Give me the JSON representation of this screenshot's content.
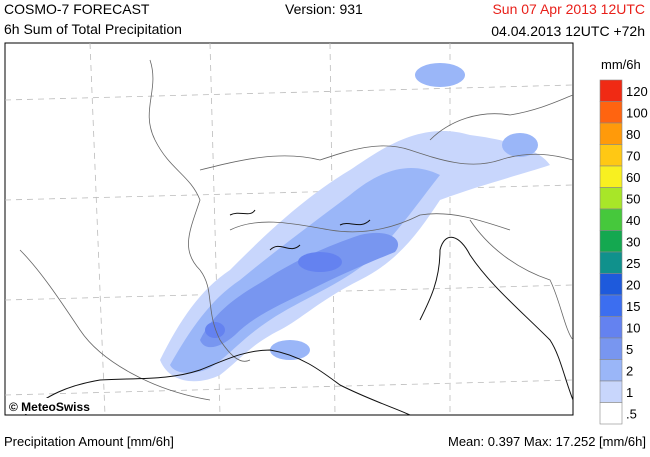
{
  "header": {
    "title": "COSMO-7 FORECAST",
    "subtitle": "6h Sum of Total Precipitation",
    "version": "Version: 931",
    "valid_time": "Sun 07 Apr 2013 12UTC",
    "run_time": "04.04.2013 12UTC +72h"
  },
  "map": {
    "credit": "© MeteoSwiss"
  },
  "legend": {
    "title": "mm/6h",
    "entries": [
      {
        "label": "120",
        "color": "#f02a14"
      },
      {
        "label": "100",
        "color": "#ff6410"
      },
      {
        "label": "80",
        "color": "#ff9a0a"
      },
      {
        "label": "70",
        "color": "#ffc814"
      },
      {
        "label": "60",
        "color": "#f8f020"
      },
      {
        "label": "50",
        "color": "#a8e628"
      },
      {
        "label": "40",
        "color": "#46c83c"
      },
      {
        "label": "30",
        "color": "#14a850"
      },
      {
        "label": "25",
        "color": "#10918c"
      },
      {
        "label": "20",
        "color": "#1e5adc"
      },
      {
        "label": "15",
        "color": "#3c6ef0"
      },
      {
        "label": "10",
        "color": "#6482f0"
      },
      {
        "label": "5",
        "color": "#7896f0"
      },
      {
        "label": "2",
        "color": "#9ab6f8"
      },
      {
        "label": "1",
        "color": "#c8d6fc"
      },
      {
        "label": ".5",
        "color": "#ffffff"
      }
    ]
  },
  "footer": {
    "left": "Precipitation Amount [mm/6h]",
    "right": "Mean:  0.397 Max:  17.252 [mm/6h]"
  }
}
